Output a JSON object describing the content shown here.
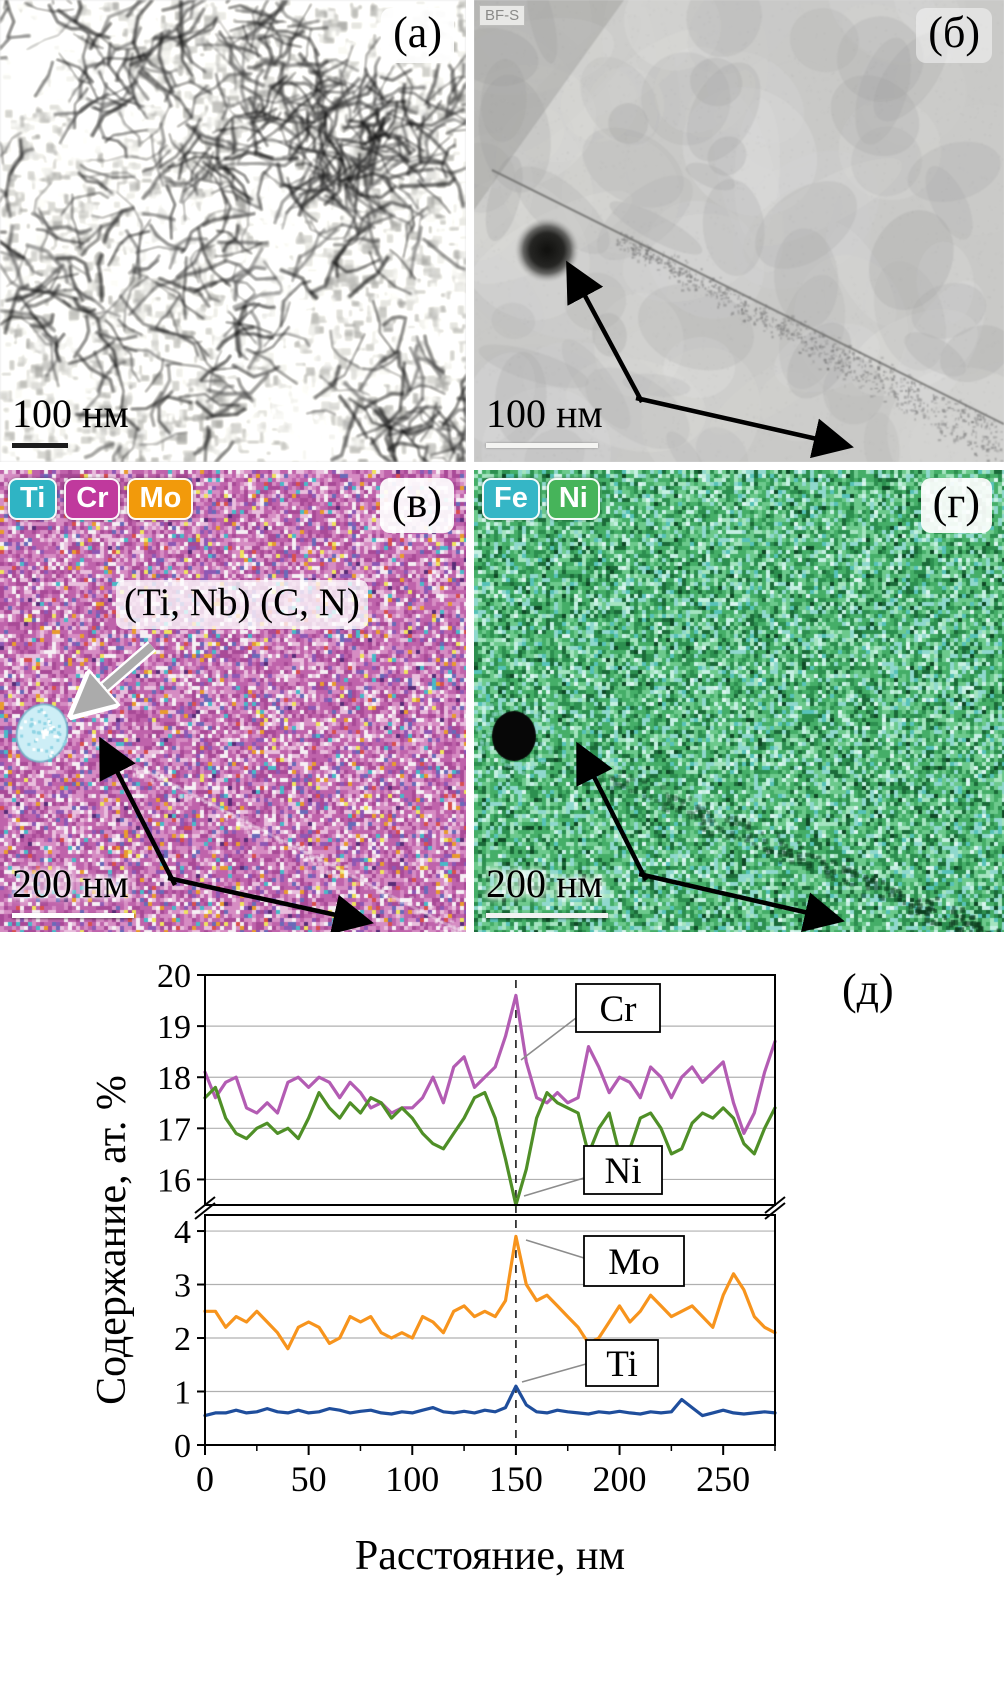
{
  "figure": {
    "panels": {
      "a": {
        "label": "(а)",
        "scale_text": "100 нм"
      },
      "b": {
        "label": "(б)",
        "scale_text": "100 нм",
        "mode_tag": "BF-S"
      },
      "v": {
        "label": "(в)",
        "scale_text": "200 нм",
        "annotation": "(Ti, Nb) (C, N)",
        "chips": [
          {
            "label": "Ti",
            "color": "#2fb4c4"
          },
          {
            "label": "Cr",
            "color": "#c0399d"
          },
          {
            "label": "Mo",
            "color": "#f29a0b"
          }
        ]
      },
      "g": {
        "label": "(г)",
        "scale_text": "200 нм",
        "chips": [
          {
            "label": "Fe",
            "color": "#35b6c6"
          },
          {
            "label": "Ni",
            "color": "#46b45a"
          }
        ]
      },
      "d": {
        "label": "(д)"
      }
    }
  },
  "chart_data": {
    "type": "line",
    "title": "",
    "xlabel": "Расстояние, нм",
    "ylabel": "Содержание, ат. %",
    "x_range": [
      0,
      275
    ],
    "x_step": 5,
    "x_ticks": [
      0,
      50,
      100,
      150,
      200,
      250
    ],
    "broken_axis": true,
    "dashed_line_x": 150,
    "grid": true,
    "panels": [
      {
        "ylim": [
          15.5,
          20
        ],
        "ticks": [
          16,
          17,
          18,
          19,
          20
        ]
      },
      {
        "ylim": [
          0,
          4.3
        ],
        "ticks": [
          0,
          1,
          2,
          3,
          4
        ]
      }
    ],
    "series": [
      {
        "name": "Cr",
        "color": "#b35cb3",
        "panel": 0,
        "values": [
          18.1,
          17.6,
          17.9,
          18.0,
          17.4,
          17.3,
          17.5,
          17.3,
          17.9,
          18.0,
          17.8,
          18.0,
          17.9,
          17.6,
          17.9,
          17.7,
          17.4,
          17.5,
          17.3,
          17.4,
          17.4,
          17.6,
          18.0,
          17.5,
          18.2,
          18.4,
          17.8,
          18.0,
          18.2,
          18.8,
          19.6,
          18.3,
          17.6,
          17.5,
          17.7,
          17.5,
          17.6,
          18.6,
          18.2,
          17.7,
          18.0,
          17.9,
          17.6,
          18.2,
          18.0,
          17.6,
          18.0,
          18.2,
          17.9,
          18.1,
          18.3,
          17.5,
          16.9,
          17.3,
          18.1,
          18.7
        ]
      },
      {
        "name": "Ni",
        "color": "#4f8f27",
        "panel": 0,
        "values": [
          17.6,
          17.8,
          17.2,
          16.9,
          16.8,
          17.0,
          17.1,
          16.9,
          17.0,
          16.8,
          17.2,
          17.7,
          17.4,
          17.2,
          17.5,
          17.3,
          17.6,
          17.5,
          17.2,
          17.4,
          17.2,
          16.9,
          16.7,
          16.6,
          16.9,
          17.2,
          17.6,
          17.7,
          17.2,
          16.4,
          15.5,
          16.2,
          17.2,
          17.7,
          17.5,
          17.4,
          17.3,
          16.5,
          17.0,
          17.3,
          16.5,
          16.6,
          17.2,
          17.3,
          17.0,
          16.5,
          16.6,
          17.1,
          17.3,
          17.2,
          17.4,
          17.2,
          16.7,
          16.5,
          17.0,
          17.4
        ]
      },
      {
        "name": "Mo",
        "color": "#f7941d",
        "panel": 1,
        "values": [
          2.5,
          2.5,
          2.2,
          2.4,
          2.3,
          2.5,
          2.3,
          2.1,
          1.8,
          2.2,
          2.3,
          2.2,
          1.9,
          2.0,
          2.4,
          2.3,
          2.4,
          2.1,
          2.0,
          2.1,
          2.0,
          2.4,
          2.3,
          2.1,
          2.5,
          2.6,
          2.4,
          2.5,
          2.4,
          2.7,
          3.9,
          3.0,
          2.7,
          2.8,
          2.6,
          2.4,
          2.2,
          1.9,
          2.0,
          2.3,
          2.6,
          2.3,
          2.5,
          2.8,
          2.6,
          2.4,
          2.5,
          2.6,
          2.4,
          2.2,
          2.8,
          3.2,
          2.9,
          2.4,
          2.2,
          2.1
        ]
      },
      {
        "name": "Ti",
        "color": "#1f4e9c",
        "panel": 1,
        "values": [
          0.55,
          0.6,
          0.6,
          0.65,
          0.6,
          0.62,
          0.68,
          0.62,
          0.6,
          0.65,
          0.6,
          0.62,
          0.68,
          0.65,
          0.6,
          0.63,
          0.65,
          0.6,
          0.58,
          0.62,
          0.6,
          0.65,
          0.7,
          0.62,
          0.6,
          0.63,
          0.6,
          0.65,
          0.62,
          0.7,
          1.1,
          0.75,
          0.62,
          0.6,
          0.65,
          0.62,
          0.6,
          0.58,
          0.62,
          0.6,
          0.63,
          0.6,
          0.58,
          0.62,
          0.6,
          0.62,
          0.85,
          0.7,
          0.55,
          0.6,
          0.65,
          0.6,
          0.58,
          0.6,
          0.62,
          0.6
        ]
      }
    ]
  },
  "textures": {
    "tem_a_bg": "#f0efec",
    "tem_b_bg": "#c9c9c7",
    "map_v_cell": 4,
    "map_g_cell": 4,
    "precipitate_v_color": "#cdeef6",
    "precipitate_g_color": "#070707",
    "map_v_palette": [
      {
        "c": "#bf63ab",
        "w": 0.26
      },
      {
        "c": "#a94a97",
        "w": 0.16
      },
      {
        "c": "#d68cc3",
        "w": 0.2
      },
      {
        "c": "#e9bedd",
        "w": 0.12
      },
      {
        "c": "#f6eef4",
        "w": 0.1
      },
      {
        "c": "#8e58b4",
        "w": 0.05
      },
      {
        "c": "#6a6ab8",
        "w": 0.03
      },
      {
        "c": "#e89b2e",
        "w": 0.02
      },
      {
        "c": "#49b9c8",
        "w": 0.02
      },
      {
        "c": "#efe25e",
        "w": 0.015
      },
      {
        "c": "#d84f4f",
        "w": 0.015
      },
      {
        "c": "#5a2d78",
        "w": 0.01
      }
    ],
    "map_g_palette": [
      {
        "c": "#45ae68",
        "w": 0.22
      },
      {
        "c": "#2c8f4f",
        "w": 0.16
      },
      {
        "c": "#6cc98c",
        "w": 0.18
      },
      {
        "c": "#a4e4c0",
        "w": 0.1
      },
      {
        "c": "#8fd8cd",
        "w": 0.12
      },
      {
        "c": "#c4f0e2",
        "w": 0.06
      },
      {
        "c": "#1b6b39",
        "w": 0.08
      },
      {
        "c": "#57c2b8",
        "w": 0.04
      },
      {
        "c": "#d8f5ee",
        "w": 0.02
      },
      {
        "c": "#0f4a26",
        "w": 0.02
      }
    ]
  }
}
